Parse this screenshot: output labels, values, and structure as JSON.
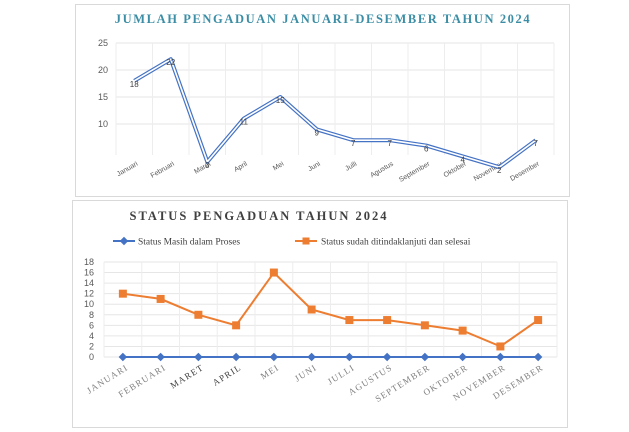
{
  "chart_data": [
    {
      "type": "line",
      "title": "JUMLAH PENGADUAN JANUARI-DESEMBER TAHUN 2024",
      "categories": [
        "Januari",
        "Februari",
        "Maret",
        "April",
        "Mei",
        "Juni",
        "Julli",
        "Agustus",
        "September",
        "Oktober",
        "November",
        "Desember"
      ],
      "series": [
        {
          "values": [
            18,
            22,
            3,
            11,
            15,
            9,
            7,
            7,
            6,
            4,
            2,
            7
          ],
          "data_labels": [
            "18",
            "22",
            "3",
            "11",
            "15",
            "9",
            "7",
            "7",
            "6",
            "4",
            "2",
            "7"
          ]
        }
      ],
      "y_ticks": [
        "10",
        "15",
        "20",
        "25"
      ],
      "ylim": [
        5,
        25
      ],
      "grid": true,
      "colors": {
        "line": "#4472c4",
        "inner": "#ffffff"
      }
    },
    {
      "type": "line",
      "title": "STATUS PENGADUAN TAHUN 2024",
      "categories": [
        "JANUARI",
        "FEBRUARI",
        "MARET",
        "APRIL",
        "MEI",
        "JUNI",
        "JULLI",
        "AGUSTUS",
        "SEPTEMBER",
        "OKTOBER",
        "NOVEMBER",
        "DESEMBER"
      ],
      "series": [
        {
          "name": "Status Masih dalam Proses",
          "values": [
            0,
            0,
            0,
            0,
            0,
            0,
            0,
            0,
            0,
            0,
            0,
            0
          ],
          "color": "#4472c4",
          "marker": "diamond"
        },
        {
          "name": "Status sudah ditindaklanjuti dan selesai",
          "values": [
            12,
            11,
            8,
            6,
            16,
            9,
            7,
            7,
            6,
            5,
            2,
            7
          ],
          "color": "#ed7d31",
          "marker": "square"
        }
      ],
      "y_ticks": [
        "0",
        "2",
        "4",
        "6",
        "8",
        "10",
        "12",
        "14",
        "16",
        "18"
      ],
      "ylim": [
        0,
        18
      ],
      "legend": "top",
      "grid": true
    }
  ]
}
